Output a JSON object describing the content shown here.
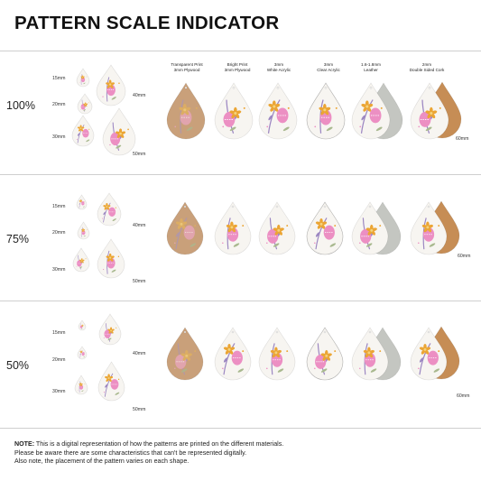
{
  "title": "PATTERN SCALE INDICATOR",
  "columns": [
    {
      "line1": "Transparent Print",
      "line2": "3mm Plywood"
    },
    {
      "line1": "Bright Print",
      "line2": "3mm Plywood"
    },
    {
      "line1": "3mm",
      "line2": "White Acrylic"
    },
    {
      "line1": "3mm",
      "line2": "Clear Acrylic"
    },
    {
      "line1": "1.6-1.8mm",
      "line2": "Leather"
    },
    {
      "line1": "2mm",
      "line2": "Double Sided Cork"
    }
  ],
  "rows": [
    {
      "scale": "100%",
      "s15": "15mm",
      "s20": "20mm",
      "s30": "30mm",
      "s40": "40mm",
      "s50": "50mm",
      "s60": "60mm"
    },
    {
      "scale": "75%",
      "s15": "15mm",
      "s20": "20mm",
      "s30": "30mm",
      "s40": "40mm",
      "s50": "50mm",
      "s60": "60mm"
    },
    {
      "scale": "50%",
      "s15": "15mm",
      "s20": "20mm",
      "s30": "30mm",
      "s40": "40mm",
      "s50": "50mm",
      "s60": "60mm"
    }
  ],
  "note": {
    "label": "NOTE:",
    "line1": "This is a digital representation of how the patterns are printed on the different materials.",
    "line2": "Please be aware there are some characteristics that can't be represented digitally.",
    "line3": "Also note, the placement of the pattern varies on each shape."
  },
  "colors": {
    "plywood": "#c9a07a",
    "white": "#f7f5f1",
    "cork": "#c68d55",
    "leather_grey": "#c4c6c1",
    "pink": "#ec8fc3",
    "orange": "#eba534",
    "purple": "#9c87c2",
    "green": "#a9b98f"
  }
}
